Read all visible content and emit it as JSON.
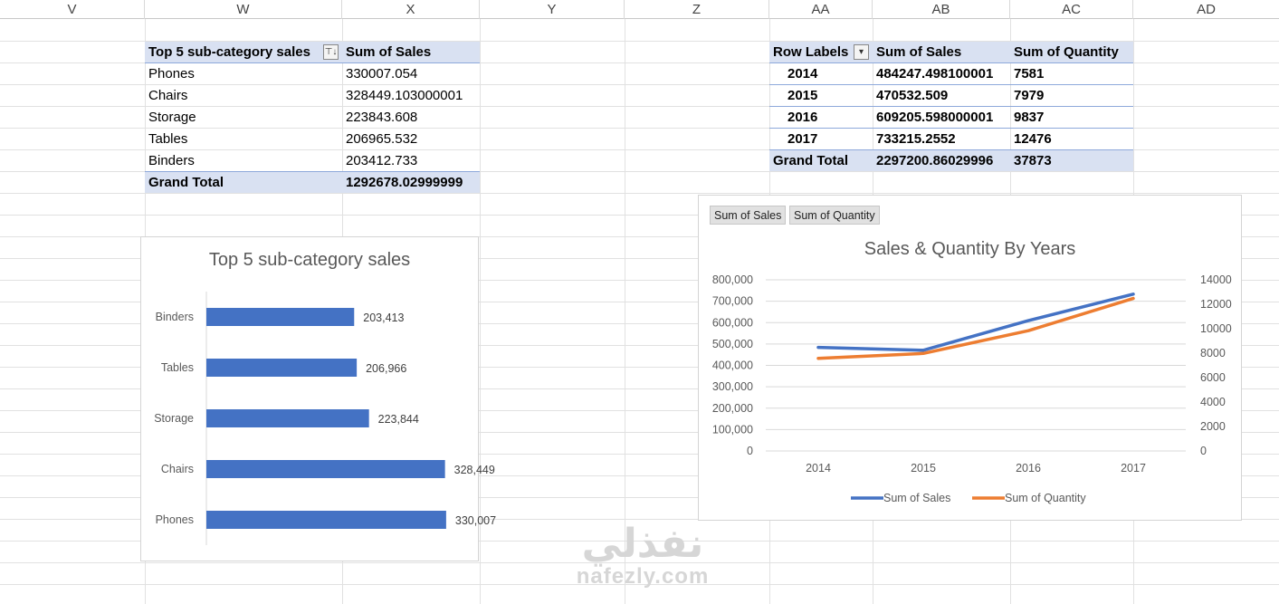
{
  "columns": [
    "V",
    "W",
    "X",
    "Y",
    "Z",
    "AA",
    "AB",
    "AC",
    "AD"
  ],
  "pivot_sub": {
    "header_label": "Top 5 sub-category sales",
    "header_value": "Sum of Sales",
    "rows": [
      {
        "label": "Phones",
        "value": "330007.054"
      },
      {
        "label": "Chairs",
        "value": "328449.103000001"
      },
      {
        "label": "Storage",
        "value": "223843.608"
      },
      {
        "label": "Tables",
        "value": "206965.532"
      },
      {
        "label": "Binders",
        "value": "203412.733"
      }
    ],
    "total_label": "Grand Total",
    "total_value": "1292678.02999999"
  },
  "pivot_years": {
    "header_label": "Row Labels",
    "header_sales": "Sum of Sales",
    "header_qty": "Sum of Quantity",
    "rows": [
      {
        "year": "2014",
        "sales": "484247.498100001",
        "qty": "7581"
      },
      {
        "year": "2015",
        "sales": "470532.509",
        "qty": "7979"
      },
      {
        "year": "2016",
        "sales": "609205.598000001",
        "qty": "9837"
      },
      {
        "year": "2017",
        "sales": "733215.2552",
        "qty": "12476"
      }
    ],
    "total_label": "Grand Total",
    "total_sales": "2297200.86029996",
    "total_qty": "37873"
  },
  "chart_data": [
    {
      "type": "bar",
      "orientation": "horizontal",
      "title": "Top 5 sub-category sales",
      "categories": [
        "Binders",
        "Tables",
        "Storage",
        "Chairs",
        "Phones"
      ],
      "values": [
        203412.733,
        206965.532,
        223843.608,
        328449.103,
        330007.054
      ],
      "data_labels": [
        "203,413",
        "206,966",
        "223,844",
        "328,449",
        "330,007"
      ],
      "color": "#4472c4",
      "xlim": [
        0,
        360000
      ],
      "grid": false,
      "legend": "none"
    },
    {
      "type": "line",
      "title": "Sales & Quantity By Years",
      "x": [
        "2014",
        "2015",
        "2016",
        "2017"
      ],
      "series": [
        {
          "name": "Sum of Sales",
          "axis": "left",
          "color": "#4472c4",
          "values": [
            484247.498,
            470532.509,
            609205.598,
            733215.255
          ]
        },
        {
          "name": "Sum of Quantity",
          "axis": "right",
          "color": "#ed7d31",
          "values": [
            7581,
            7979,
            9837,
            12476
          ]
        }
      ],
      "ylim_left": [
        0,
        800000
      ],
      "ylim_right": [
        0,
        14000
      ],
      "yticks_left": [
        "0",
        "100,000",
        "200,000",
        "300,000",
        "400,000",
        "500,000",
        "600,000",
        "700,000",
        "800,000"
      ],
      "yticks_right": [
        "0",
        "2000",
        "4000",
        "6000",
        "8000",
        "10000",
        "12000",
        "14000"
      ],
      "field_buttons": [
        "Sum of Sales",
        "Sum of Quantity"
      ],
      "grid": true,
      "legend": "bottom"
    }
  ],
  "watermark": {
    "main": "نفذلي",
    "sub": "nafezly.com"
  }
}
